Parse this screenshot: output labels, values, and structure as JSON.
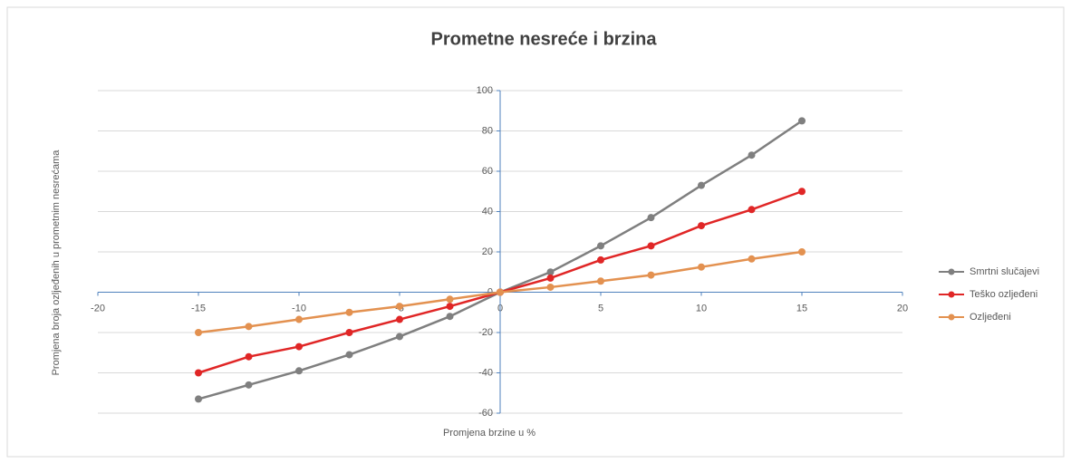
{
  "chart_data": {
    "type": "scatter",
    "title": "Prometne nesreće i brzina",
    "x_label": "Promjena brzine u %",
    "y_label": "Promjena broja ozljeđenih u prometnim nesrećama",
    "x": [
      -15,
      -12.5,
      -10,
      -7.5,
      -5,
      -2.5,
      0,
      2.5,
      5,
      7.5,
      10,
      12.5,
      15
    ],
    "series": [
      {
        "name": "Smrtni slučajevi",
        "color": "#7f7f7f",
        "values": [
          -53,
          -46,
          -39,
          -31,
          -22,
          -12,
          0,
          10,
          23,
          37,
          53,
          68,
          85
        ]
      },
      {
        "name": "Teško ozljeđeni",
        "color": "#e02626",
        "values": [
          -40,
          -32,
          -27,
          -20,
          -13.5,
          -7,
          0,
          7,
          16,
          23,
          33,
          41,
          50
        ]
      },
      {
        "name": "Ozljeđeni",
        "color": "#e39150",
        "values": [
          -20,
          -17,
          -13.5,
          -10,
          -7,
          -3.5,
          0,
          2.5,
          5.5,
          8.5,
          12.5,
          16.5,
          20
        ]
      }
    ],
    "xlim": [
      -20,
      20
    ],
    "xticks": [
      -20,
      -15,
      -10,
      -5,
      0,
      5,
      10,
      15,
      20
    ],
    "ylim": [
      -60,
      100
    ],
    "yticks": [
      -60,
      -40,
      -20,
      0,
      20,
      40,
      60,
      80,
      100
    ],
    "grid": true,
    "legend": "right"
  }
}
